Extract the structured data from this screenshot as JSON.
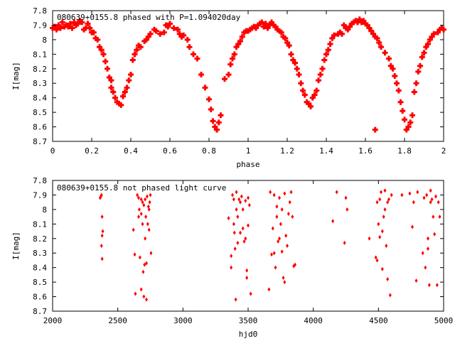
{
  "chart_data": [
    {
      "type": "scatter",
      "title": "080639+0155.8 phased with P=1.094020day",
      "xlabel": "phase",
      "ylabel": "I[mag]",
      "xlim": [
        0,
        2
      ],
      "ylim": [
        8.7,
        7.8
      ],
      "y_inverted": true,
      "marker_color": "#ff0000",
      "grid": false,
      "xticks": [
        "0",
        "0.2",
        "0.4",
        "0.6",
        "0.8",
        "1",
        "1.2",
        "1.4",
        "1.6",
        "1.8",
        "2"
      ],
      "yticks": [
        "7.8",
        "7.9",
        "8",
        "8.1",
        "8.2",
        "8.3",
        "8.4",
        "8.5",
        "8.6",
        "8.7"
      ],
      "points": [
        [
          0.0,
          7.92
        ],
        [
          0.01,
          7.91
        ],
        [
          0.02,
          7.93
        ],
        [
          0.03,
          7.9
        ],
        [
          0.04,
          7.92
        ],
        [
          0.05,
          7.88
        ],
        [
          0.06,
          7.91
        ],
        [
          0.07,
          7.9
        ],
        [
          0.08,
          7.91
        ],
        [
          0.09,
          7.89
        ],
        [
          0.1,
          7.92
        ],
        [
          0.11,
          7.88
        ],
        [
          0.12,
          7.9
        ],
        [
          0.13,
          7.89
        ],
        [
          0.14,
          7.87
        ],
        [
          0.15,
          7.88
        ],
        [
          0.16,
          7.93
        ],
        [
          0.17,
          7.92
        ],
        [
          0.18,
          7.89
        ],
        [
          0.19,
          7.92
        ],
        [
          0.2,
          7.95
        ],
        [
          0.21,
          7.95
        ],
        [
          0.22,
          7.99
        ],
        [
          0.23,
          8.0
        ],
        [
          0.24,
          8.05
        ],
        [
          0.25,
          8.07
        ],
        [
          0.26,
          8.1
        ],
        [
          0.27,
          8.15
        ],
        [
          0.28,
          8.2
        ],
        [
          0.29,
          8.26
        ],
        [
          0.3,
          8.28
        ],
        [
          0.3,
          8.33
        ],
        [
          0.31,
          8.36
        ],
        [
          0.32,
          8.4
        ],
        [
          0.33,
          8.43
        ],
        [
          0.34,
          8.44
        ],
        [
          0.35,
          8.45
        ],
        [
          0.36,
          8.39
        ],
        [
          0.37,
          8.36
        ],
        [
          0.38,
          8.33
        ],
        [
          0.39,
          8.28
        ],
        [
          0.4,
          8.24
        ],
        [
          0.41,
          8.14
        ],
        [
          0.42,
          8.1
        ],
        [
          0.43,
          8.07
        ],
        [
          0.44,
          8.04
        ],
        [
          0.45,
          8.05
        ],
        [
          0.47,
          8.01
        ],
        [
          0.48,
          8.0
        ],
        [
          0.49,
          7.98
        ],
        [
          0.5,
          7.96
        ],
        [
          0.52,
          7.93
        ],
        [
          0.53,
          7.94
        ],
        [
          0.55,
          7.96
        ],
        [
          0.57,
          7.95
        ],
        [
          0.58,
          7.9
        ],
        [
          0.59,
          7.91
        ],
        [
          0.6,
          7.89
        ],
        [
          0.62,
          7.92
        ],
        [
          0.64,
          7.93
        ],
        [
          0.65,
          7.96
        ],
        [
          0.66,
          7.98
        ],
        [
          0.67,
          7.97
        ],
        [
          0.69,
          8.0
        ],
        [
          0.7,
          8.05
        ],
        [
          0.72,
          8.1
        ],
        [
          0.74,
          8.13
        ],
        [
          0.76,
          8.24
        ],
        [
          0.78,
          8.33
        ],
        [
          0.8,
          8.41
        ],
        [
          0.81,
          8.48
        ],
        [
          0.82,
          8.56
        ],
        [
          0.83,
          8.6
        ],
        [
          0.84,
          8.62
        ],
        [
          0.85,
          8.57
        ],
        [
          0.86,
          8.52
        ],
        [
          0.88,
          8.27
        ],
        [
          0.9,
          8.24
        ],
        [
          0.91,
          8.17
        ],
        [
          0.92,
          8.13
        ],
        [
          0.93,
          8.1
        ],
        [
          0.94,
          8.05
        ],
        [
          0.95,
          8.03
        ],
        [
          0.96,
          8.01
        ],
        [
          0.97,
          7.98
        ],
        [
          0.98,
          7.95
        ],
        [
          0.99,
          7.94
        ],
        [
          1.0,
          7.94
        ],
        [
          1.01,
          7.93
        ],
        [
          1.02,
          7.92
        ],
        [
          1.03,
          7.91
        ],
        [
          1.04,
          7.92
        ],
        [
          1.05,
          7.9
        ],
        [
          1.06,
          7.89
        ],
        [
          1.07,
          7.88
        ],
        [
          1.08,
          7.91
        ],
        [
          1.09,
          7.89
        ],
        [
          1.1,
          7.92
        ],
        [
          1.11,
          7.9
        ],
        [
          1.12,
          7.88
        ],
        [
          1.13,
          7.9
        ],
        [
          1.14,
          7.91
        ],
        [
          1.15,
          7.93
        ],
        [
          1.16,
          7.94
        ],
        [
          1.17,
          7.95
        ],
        [
          1.18,
          7.98
        ],
        [
          1.19,
          7.99
        ],
        [
          1.2,
          8.02
        ],
        [
          1.21,
          8.04
        ],
        [
          1.22,
          8.1
        ],
        [
          1.23,
          8.14
        ],
        [
          1.24,
          8.16
        ],
        [
          1.25,
          8.2
        ],
        [
          1.26,
          8.24
        ],
        [
          1.27,
          8.3
        ],
        [
          1.28,
          8.35
        ],
        [
          1.29,
          8.38
        ],
        [
          1.3,
          8.43
        ],
        [
          1.31,
          8.44
        ],
        [
          1.32,
          8.46
        ],
        [
          1.33,
          8.4
        ],
        [
          1.34,
          8.38
        ],
        [
          1.35,
          8.35
        ],
        [
          1.36,
          8.28
        ],
        [
          1.37,
          8.24
        ],
        [
          1.38,
          8.2
        ],
        [
          1.39,
          8.14
        ],
        [
          1.4,
          8.1
        ],
        [
          1.41,
          8.07
        ],
        [
          1.42,
          8.03
        ],
        [
          1.43,
          7.99
        ],
        [
          1.44,
          7.97
        ],
        [
          1.46,
          7.96
        ],
        [
          1.47,
          7.95
        ],
        [
          1.48,
          7.96
        ],
        [
          1.49,
          7.9
        ],
        [
          1.5,
          7.92
        ],
        [
          1.51,
          7.93
        ],
        [
          1.52,
          7.91
        ],
        [
          1.53,
          7.89
        ],
        [
          1.54,
          7.88
        ],
        [
          1.55,
          7.87
        ],
        [
          1.56,
          7.88
        ],
        [
          1.57,
          7.86
        ],
        [
          1.58,
          7.88
        ],
        [
          1.59,
          7.87
        ],
        [
          1.6,
          7.89
        ],
        [
          1.61,
          7.9
        ],
        [
          1.62,
          7.92
        ],
        [
          1.63,
          7.94
        ],
        [
          1.64,
          7.96
        ],
        [
          1.65,
          7.98
        ],
        [
          1.66,
          7.99
        ],
        [
          1.67,
          8.02
        ],
        [
          1.68,
          8.05
        ],
        [
          1.7,
          8.09
        ],
        [
          1.72,
          8.13
        ],
        [
          1.73,
          8.18
        ],
        [
          1.74,
          8.2
        ],
        [
          1.75,
          8.25
        ],
        [
          1.76,
          8.3
        ],
        [
          1.77,
          8.35
        ],
        [
          1.78,
          8.43
        ],
        [
          1.79,
          8.49
        ],
        [
          1.8,
          8.55
        ],
        [
          1.81,
          8.62
        ],
        [
          1.82,
          8.6
        ],
        [
          1.83,
          8.57
        ],
        [
          1.84,
          8.52
        ],
        [
          1.85,
          8.36
        ],
        [
          1.86,
          8.3
        ],
        [
          1.87,
          8.22
        ],
        [
          1.88,
          8.18
        ],
        [
          1.89,
          8.12
        ],
        [
          1.9,
          8.09
        ],
        [
          1.91,
          8.05
        ],
        [
          1.92,
          8.03
        ],
        [
          1.93,
          8.0
        ],
        [
          1.94,
          7.98
        ],
        [
          1.95,
          7.96
        ],
        [
          1.97,
          7.95
        ],
        [
          1.98,
          7.93
        ],
        [
          1.99,
          7.92
        ],
        [
          2.0,
          7.93
        ],
        [
          1.65,
          8.62
        ]
      ]
    },
    {
      "type": "scatter",
      "title": "080639+0155.8 not phased light curve",
      "xlabel": "hjd0",
      "ylabel": "I[mag]",
      "xlim": [
        2000,
        5000
      ],
      "ylim": [
        8.7,
        7.8
      ],
      "y_inverted": true,
      "marker_color": "#ff0000",
      "grid": false,
      "xticks": [
        "2000",
        "2500",
        "3000",
        "3500",
        "4000",
        "4500",
        "5000"
      ],
      "yticks": [
        "7.8",
        "7.9",
        "8",
        "8.1",
        "8.2",
        "8.3",
        "8.4",
        "8.5",
        "8.6",
        "8.7"
      ],
      "points": [
        [
          2365,
          7.92
        ],
        [
          2370,
          7.91
        ],
        [
          2375,
          7.9
        ],
        [
          2380,
          8.05
        ],
        [
          2385,
          8.15
        ],
        [
          2380,
          8.18
        ],
        [
          2375,
          8.25
        ],
        [
          2380,
          8.34
        ],
        [
          2620,
          8.14
        ],
        [
          2630,
          8.31
        ],
        [
          2635,
          8.58
        ],
        [
          2650,
          7.9
        ],
        [
          2660,
          7.92
        ],
        [
          2665,
          8.0
        ],
        [
          2670,
          8.33
        ],
        [
          2680,
          8.03
        ],
        [
          2690,
          7.95
        ],
        [
          2695,
          8.43
        ],
        [
          2700,
          7.97
        ],
        [
          2705,
          8.38
        ],
        [
          2710,
          7.93
        ],
        [
          2715,
          8.05
        ],
        [
          2720,
          8.37
        ],
        [
          2725,
          7.91
        ],
        [
          2730,
          8.1
        ],
        [
          2735,
          7.98
        ],
        [
          2740,
          8.14
        ],
        [
          2745,
          7.95
        ],
        [
          2750,
          7.9
        ],
        [
          2755,
          8.3
        ],
        [
          2700,
          8.6
        ],
        [
          2720,
          8.62
        ],
        [
          2680,
          8.55
        ],
        [
          2660,
          8.05
        ],
        [
          2690,
          8.1
        ],
        [
          2710,
          8.2
        ],
        [
          2740,
          8.0
        ],
        [
          2680,
          7.93
        ],
        [
          3350,
          8.06
        ],
        [
          3370,
          8.4
        ],
        [
          3380,
          7.9
        ],
        [
          3390,
          8.1
        ],
        [
          3395,
          8.16
        ],
        [
          3400,
          8.27
        ],
        [
          3405,
          8.62
        ],
        [
          3410,
          7.88
        ],
        [
          3420,
          8.23
        ],
        [
          3430,
          7.93
        ],
        [
          3440,
          8.16
        ],
        [
          3450,
          7.91
        ],
        [
          3460,
          8.0
        ],
        [
          3470,
          8.22
        ],
        [
          3480,
          7.94
        ],
        [
          3490,
          8.47
        ],
        [
          3500,
          8.11
        ],
        [
          3510,
          7.97
        ],
        [
          3520,
          8.58
        ],
        [
          3480,
          8.2
        ],
        [
          3500,
          7.92
        ],
        [
          3420,
          8.05
        ],
        [
          3440,
          7.95
        ],
        [
          3460,
          8.13
        ],
        [
          3410,
          8.0
        ],
        [
          3390,
          7.93
        ],
        [
          3370,
          8.32
        ],
        [
          3490,
          8.42
        ],
        [
          3660,
          8.55
        ],
        [
          3670,
          7.88
        ],
        [
          3680,
          8.31
        ],
        [
          3690,
          8.13
        ],
        [
          3700,
          7.9
        ],
        [
          3710,
          8.4
        ],
        [
          3720,
          8.05
        ],
        [
          3730,
          8.22
        ],
        [
          3740,
          7.92
        ],
        [
          3750,
          8.1
        ],
        [
          3760,
          8.29
        ],
        [
          3770,
          8.47
        ],
        [
          3780,
          7.89
        ],
        [
          3790,
          8.18
        ],
        [
          3800,
          8.25
        ],
        [
          3810,
          8.03
        ],
        [
          3820,
          7.95
        ],
        [
          3830,
          7.88
        ],
        [
          3840,
          8.05
        ],
        [
          3850,
          8.39
        ],
        [
          3860,
          8.38
        ],
        [
          3780,
          8.5
        ],
        [
          3760,
          8.0
        ],
        [
          3740,
          8.2
        ],
        [
          3720,
          7.98
        ],
        [
          3700,
          8.3
        ],
        [
          4150,
          8.08
        ],
        [
          4180,
          7.88
        ],
        [
          4240,
          8.23
        ],
        [
          4250,
          7.92
        ],
        [
          4260,
          8.0
        ],
        [
          4430,
          8.2
        ],
        [
          4480,
          8.33
        ],
        [
          4490,
          7.95
        ],
        [
          4500,
          8.1
        ],
        [
          4510,
          8.19
        ],
        [
          4520,
          7.88
        ],
        [
          4530,
          8.41
        ],
        [
          4540,
          8.05
        ],
        [
          4550,
          7.87
        ],
        [
          4560,
          8.25
        ],
        [
          4570,
          8.48
        ],
        [
          4580,
          7.93
        ],
        [
          4590,
          8.59
        ],
        [
          4600,
          7.9
        ],
        [
          4510,
          7.93
        ],
        [
          4530,
          8.15
        ],
        [
          4550,
          8.0
        ],
        [
          4570,
          7.95
        ],
        [
          4490,
          8.35
        ],
        [
          4680,
          7.9
        ],
        [
          4740,
          7.89
        ],
        [
          4760,
          8.12
        ],
        [
          4770,
          7.95
        ],
        [
          4790,
          8.49
        ],
        [
          4800,
          7.88
        ],
        [
          4840,
          8.3
        ],
        [
          4850,
          7.92
        ],
        [
          4860,
          8.4
        ],
        [
          4870,
          7.9
        ],
        [
          4880,
          8.27
        ],
        [
          4890,
          8.52
        ],
        [
          4900,
          7.87
        ],
        [
          4910,
          7.93
        ],
        [
          4920,
          8.05
        ],
        [
          4930,
          8.17
        ],
        [
          4940,
          7.91
        ],
        [
          4950,
          8.52
        ],
        [
          4960,
          7.95
        ],
        [
          4970,
          8.05
        ],
        [
          4900,
          7.95
        ],
        [
          4880,
          8.2
        ]
      ]
    }
  ]
}
